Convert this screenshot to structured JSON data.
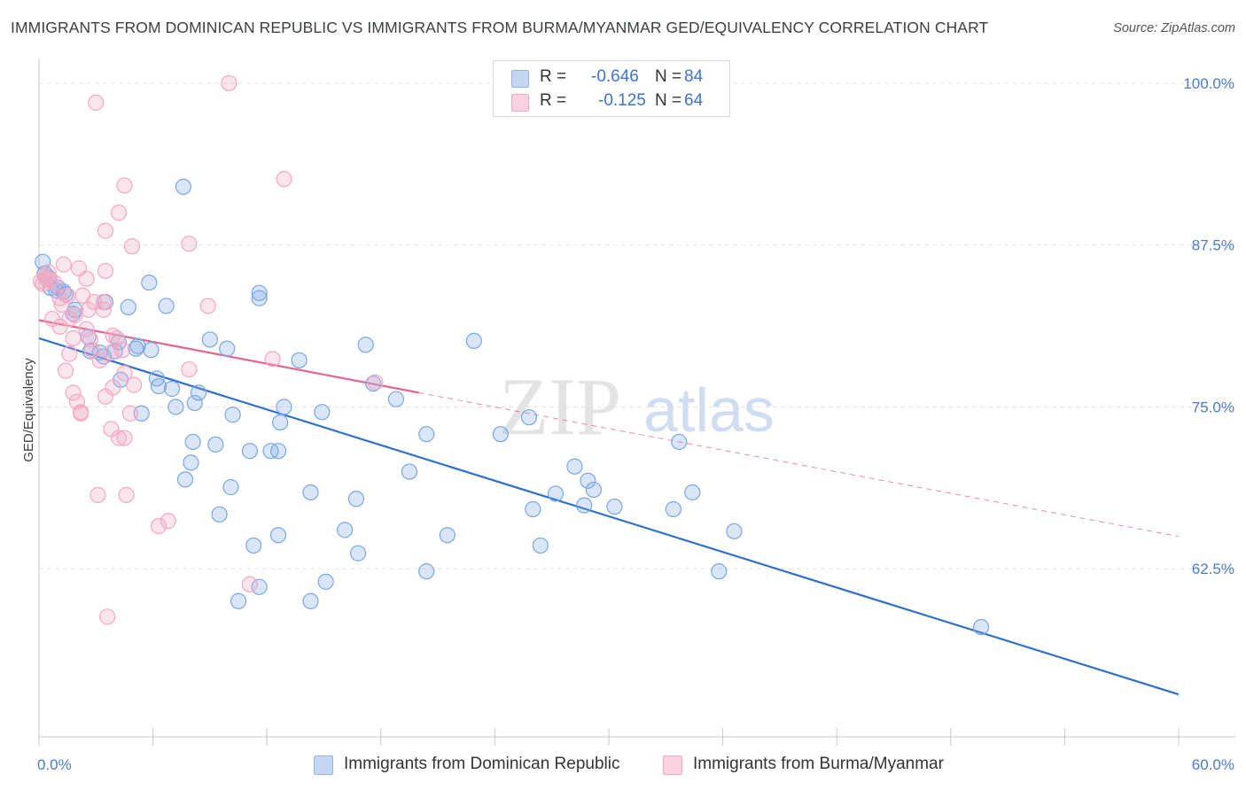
{
  "header": {
    "title": "IMMIGRANTS FROM DOMINICAN REPUBLIC VS IMMIGRANTS FROM BURMA/MYANMAR GED/EQUIVALENCY CORRELATION CHART",
    "source": "Source: ZipAtlas.com"
  },
  "legend": {
    "blue": {
      "r_label": "R =",
      "r_value": "-0.646",
      "n_label": "N =",
      "n_value": "84",
      "color": "#8fb4ea"
    },
    "pink": {
      "r_label": "R =",
      "r_value": "-0.125",
      "n_label": "N =",
      "n_value": "64",
      "color": "#f3a8c0"
    }
  },
  "bottom_legend": {
    "blue_label": "Immigrants from Dominican Republic",
    "pink_label": "Immigrants from Burma/Myanmar"
  },
  "watermark": {
    "zip": "ZIP",
    "atlas": "atlas"
  },
  "chart_data": {
    "type": "scatter",
    "title": "IMMIGRANTS FROM DOMINICAN REPUBLIC VS IMMIGRANTS FROM BURMA/MYANMAR GED/EQUIVALENCY CORRELATION CHART",
    "xlabel": "",
    "ylabel": "GED/Equivalency",
    "xlim": [
      0,
      60
    ],
    "ylim": [
      50,
      101.5
    ],
    "x_tick_labels": [
      "0.0%",
      "60.0%"
    ],
    "y_ticks": [
      62.5,
      75.0,
      87.5,
      100.0
    ],
    "y_tick_labels": [
      "62.5%",
      "75.0%",
      "87.5%",
      "100.0%"
    ],
    "grid": true,
    "legend_position": "top-center",
    "series": [
      {
        "name": "Immigrants from Dominican Republic",
        "color": "#7aa6e6",
        "line_color": "#2f6fd0",
        "trend": {
          "x": [
            0,
            60
          ],
          "y": [
            80.3,
            52.8
          ]
        },
        "points": [
          [
            0.2,
            86.2
          ],
          [
            0.3,
            85.3
          ],
          [
            0.5,
            85.0
          ],
          [
            1.0,
            84.2
          ],
          [
            0.9,
            84.0
          ],
          [
            1.4,
            83.7
          ],
          [
            1.9,
            82.5
          ],
          [
            1.8,
            82.2
          ],
          [
            3.5,
            83.1
          ],
          [
            4.7,
            82.7
          ],
          [
            5.8,
            84.6
          ],
          [
            6.7,
            82.8
          ],
          [
            11.6,
            83.4
          ],
          [
            11.6,
            83.8
          ],
          [
            7.6,
            92.0
          ],
          [
            2.6,
            80.4
          ],
          [
            3.2,
            79.2
          ],
          [
            2.7,
            79.3
          ],
          [
            4.0,
            79.3
          ],
          [
            4.2,
            80.0
          ],
          [
            5.1,
            79.5
          ],
          [
            5.2,
            79.7
          ],
          [
            5.9,
            79.4
          ],
          [
            3.4,
            78.9
          ],
          [
            9.0,
            80.2
          ],
          [
            9.9,
            79.5
          ],
          [
            13.7,
            78.6
          ],
          [
            17.2,
            79.8
          ],
          [
            22.9,
            80.1
          ],
          [
            4.3,
            77.1
          ],
          [
            6.2,
            77.2
          ],
          [
            6.3,
            76.6
          ],
          [
            7.0,
            76.4
          ],
          [
            8.4,
            76.1
          ],
          [
            8.2,
            75.3
          ],
          [
            7.2,
            75.0
          ],
          [
            5.4,
            74.5
          ],
          [
            10.2,
            74.4
          ],
          [
            12.9,
            75.0
          ],
          [
            14.9,
            74.6
          ],
          [
            12.7,
            73.8
          ],
          [
            17.6,
            76.8
          ],
          [
            18.8,
            75.6
          ],
          [
            25.8,
            74.2
          ],
          [
            20.4,
            72.9
          ],
          [
            24.3,
            72.9
          ],
          [
            8.1,
            72.3
          ],
          [
            9.3,
            72.1
          ],
          [
            11.1,
            71.6
          ],
          [
            12.2,
            71.6
          ],
          [
            12.6,
            71.6
          ],
          [
            8.0,
            70.7
          ],
          [
            7.7,
            69.4
          ],
          [
            10.1,
            68.8
          ],
          [
            14.3,
            68.4
          ],
          [
            16.7,
            67.9
          ],
          [
            19.5,
            70.0
          ],
          [
            27.2,
            68.3
          ],
          [
            28.2,
            70.4
          ],
          [
            28.9,
            69.3
          ],
          [
            29.2,
            68.6
          ],
          [
            26.0,
            67.1
          ],
          [
            28.7,
            67.4
          ],
          [
            30.3,
            67.3
          ],
          [
            33.7,
            72.3
          ],
          [
            34.4,
            68.4
          ],
          [
            33.4,
            67.1
          ],
          [
            36.6,
            65.4
          ],
          [
            9.5,
            66.7
          ],
          [
            11.3,
            64.3
          ],
          [
            12.6,
            65.1
          ],
          [
            16.1,
            65.5
          ],
          [
            16.8,
            63.7
          ],
          [
            21.5,
            65.1
          ],
          [
            26.4,
            64.3
          ],
          [
            20.4,
            62.3
          ],
          [
            35.8,
            62.3
          ],
          [
            15.1,
            61.5
          ],
          [
            11.6,
            61.1
          ],
          [
            10.5,
            60.0
          ],
          [
            14.3,
            60.0
          ],
          [
            49.6,
            58.0
          ],
          [
            0.6,
            84.2
          ],
          [
            1.3,
            83.9
          ]
        ]
      },
      {
        "name": "Immigrants from Burma/Myanmar",
        "color": "#f3a8c0",
        "line_color": "#e8628f",
        "trend": {
          "x": [
            0,
            20
          ],
          "y": [
            81.7,
            76.1
          ]
        },
        "trend_extension": {
          "x": [
            20,
            60
          ],
          "y": [
            76.1,
            65.0
          ]
        },
        "points": [
          [
            0.1,
            84.7
          ],
          [
            0.2,
            84.5
          ],
          [
            0.3,
            85.1
          ],
          [
            0.5,
            85.4
          ],
          [
            0.6,
            84.8
          ],
          [
            0.8,
            84.6
          ],
          [
            1.3,
            86.0
          ],
          [
            2.1,
            85.7
          ],
          [
            2.5,
            84.9
          ],
          [
            2.3,
            83.6
          ],
          [
            3.4,
            83.1
          ],
          [
            3.5,
            85.5
          ],
          [
            2.9,
            83.1
          ],
          [
            1.1,
            83.4
          ],
          [
            1.2,
            82.9
          ],
          [
            0.7,
            81.8
          ],
          [
            1.6,
            81.8
          ],
          [
            1.9,
            82.1
          ],
          [
            2.6,
            82.5
          ],
          [
            3.4,
            82.5
          ],
          [
            1.1,
            81.2
          ],
          [
            1.8,
            80.3
          ],
          [
            2.5,
            81.0
          ],
          [
            2.7,
            80.2
          ],
          [
            1.6,
            79.1
          ],
          [
            2.8,
            79.4
          ],
          [
            3.8,
            79.2
          ],
          [
            4.4,
            79.4
          ],
          [
            3.2,
            78.6
          ],
          [
            3.9,
            80.5
          ],
          [
            4.5,
            77.6
          ],
          [
            5.0,
            76.7
          ],
          [
            3.9,
            76.5
          ],
          [
            3.5,
            75.8
          ],
          [
            1.4,
            77.8
          ],
          [
            1.8,
            76.1
          ],
          [
            2.0,
            75.4
          ],
          [
            2.2,
            74.6
          ],
          [
            2.2,
            74.5
          ],
          [
            4.8,
            74.5
          ],
          [
            3.8,
            73.3
          ],
          [
            4.2,
            72.6
          ],
          [
            4.5,
            72.6
          ],
          [
            3.1,
            68.2
          ],
          [
            4.6,
            68.2
          ],
          [
            6.3,
            65.8
          ],
          [
            6.8,
            66.2
          ],
          [
            11.1,
            61.3
          ],
          [
            3.6,
            58.8
          ],
          [
            3.0,
            98.5
          ],
          [
            10.0,
            100.0
          ],
          [
            12.9,
            92.6
          ],
          [
            4.5,
            92.1
          ],
          [
            4.2,
            90.0
          ],
          [
            3.5,
            88.6
          ],
          [
            4.9,
            87.4
          ],
          [
            7.9,
            87.6
          ],
          [
            8.9,
            82.8
          ],
          [
            7.9,
            77.9
          ],
          [
            12.3,
            78.7
          ],
          [
            17.7,
            76.9
          ],
          [
            4.1,
            80.3
          ],
          [
            0.4,
            84.9
          ],
          [
            1.5,
            83.6
          ]
        ]
      }
    ]
  }
}
